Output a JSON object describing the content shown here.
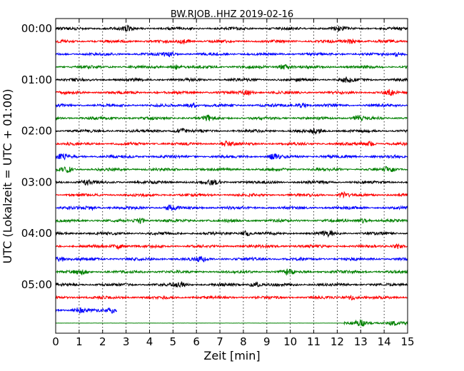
{
  "chart_data": {
    "type": "line",
    "title": "BW.RJOB..HHZ 2019-02-16",
    "xlabel": "Zeit  [min]",
    "ylabel": "UTC (Lokalzeit = UTC + 01:00)",
    "xlim": [
      0,
      15
    ],
    "x_ticks": [
      "0",
      "1",
      "2",
      "3",
      "4",
      "5",
      "6",
      "7",
      "8",
      "9",
      "10",
      "11",
      "12",
      "13",
      "14",
      "15"
    ],
    "y_ticks": [
      "00:00",
      "01:00",
      "02:00",
      "03:00",
      "04:00",
      "05:00"
    ],
    "y_tick_rows": [
      0,
      4,
      8,
      12,
      16,
      20
    ],
    "vertical_grid": "dotted at every minute",
    "trace_colors": [
      "#000000",
      "#ff0000",
      "#0000ff",
      "#008000"
    ],
    "traces": [
      {
        "start": "00:00",
        "x_start": 0,
        "x_end": 15,
        "bursts": [
          3.1,
          12.1
        ]
      },
      {
        "start": "00:15",
        "x_start": 0,
        "x_end": 15,
        "bursts": [
          5.5,
          12.6
        ]
      },
      {
        "start": "00:30",
        "x_start": 0,
        "x_end": 15,
        "bursts": [
          4.8,
          14.6
        ]
      },
      {
        "start": "00:45",
        "x_start": 0,
        "x_end": 15,
        "bursts": [
          5.1,
          9.7
        ]
      },
      {
        "start": "01:00",
        "x_start": 0,
        "x_end": 15,
        "bursts": [
          12.4
        ]
      },
      {
        "start": "01:15",
        "x_start": 0,
        "x_end": 15,
        "bursts": [
          8.2,
          14.2
        ]
      },
      {
        "start": "01:30",
        "x_start": 0,
        "x_end": 15,
        "bursts": [
          5.8,
          10.5
        ]
      },
      {
        "start": "01:45",
        "x_start": 0,
        "x_end": 15,
        "bursts": [
          6.5,
          12.9
        ]
      },
      {
        "start": "02:00",
        "x_start": 0,
        "x_end": 15,
        "bursts": [
          5.3,
          11.1
        ]
      },
      {
        "start": "02:15",
        "x_start": 0,
        "x_end": 15,
        "bursts": [
          7.3,
          13.4
        ]
      },
      {
        "start": "02:30",
        "x_start": 0,
        "x_end": 15,
        "bursts": [
          0.3,
          9.3
        ]
      },
      {
        "start": "02:45",
        "x_start": 0,
        "x_end": 15,
        "bursts": [
          0.5,
          14.2
        ]
      },
      {
        "start": "03:00",
        "x_start": 0,
        "x_end": 15,
        "bursts": [
          1.3,
          6.7
        ]
      },
      {
        "start": "03:15",
        "x_start": 0,
        "x_end": 15,
        "bursts": [
          12.3
        ]
      },
      {
        "start": "03:30",
        "x_start": 0,
        "x_end": 15,
        "bursts": [
          1.5,
          4.9
        ]
      },
      {
        "start": "03:45",
        "x_start": 0,
        "x_end": 15,
        "bursts": [
          3.6,
          13.1
        ]
      },
      {
        "start": "04:00",
        "x_start": 0,
        "x_end": 15,
        "bursts": [
          8.1,
          11.6
        ]
      },
      {
        "start": "04:15",
        "x_start": 0,
        "x_end": 15,
        "bursts": [
          2.7,
          14.6
        ]
      },
      {
        "start": "04:30",
        "x_start": 0,
        "x_end": 15,
        "bursts": [
          0.2,
          6.2
        ]
      },
      {
        "start": "04:45",
        "x_start": 0,
        "x_end": 15,
        "bursts": [
          1.1,
          9.9
        ]
      },
      {
        "start": "05:00",
        "x_start": 0,
        "x_end": 15,
        "bursts": [
          5.3,
          8.5
        ]
      },
      {
        "start": "05:15",
        "x_start": 0,
        "x_end": 15,
        "bursts": [
          12.6
        ]
      },
      {
        "start": "05:30",
        "x_start": 0,
        "x_end": 2.6,
        "bursts": [
          1.0,
          2.4
        ]
      },
      {
        "start": "05:45",
        "x_start": 0,
        "x_end": 15,
        "active_from": 12.3,
        "bursts": [
          13.0,
          14.4
        ]
      }
    ]
  }
}
